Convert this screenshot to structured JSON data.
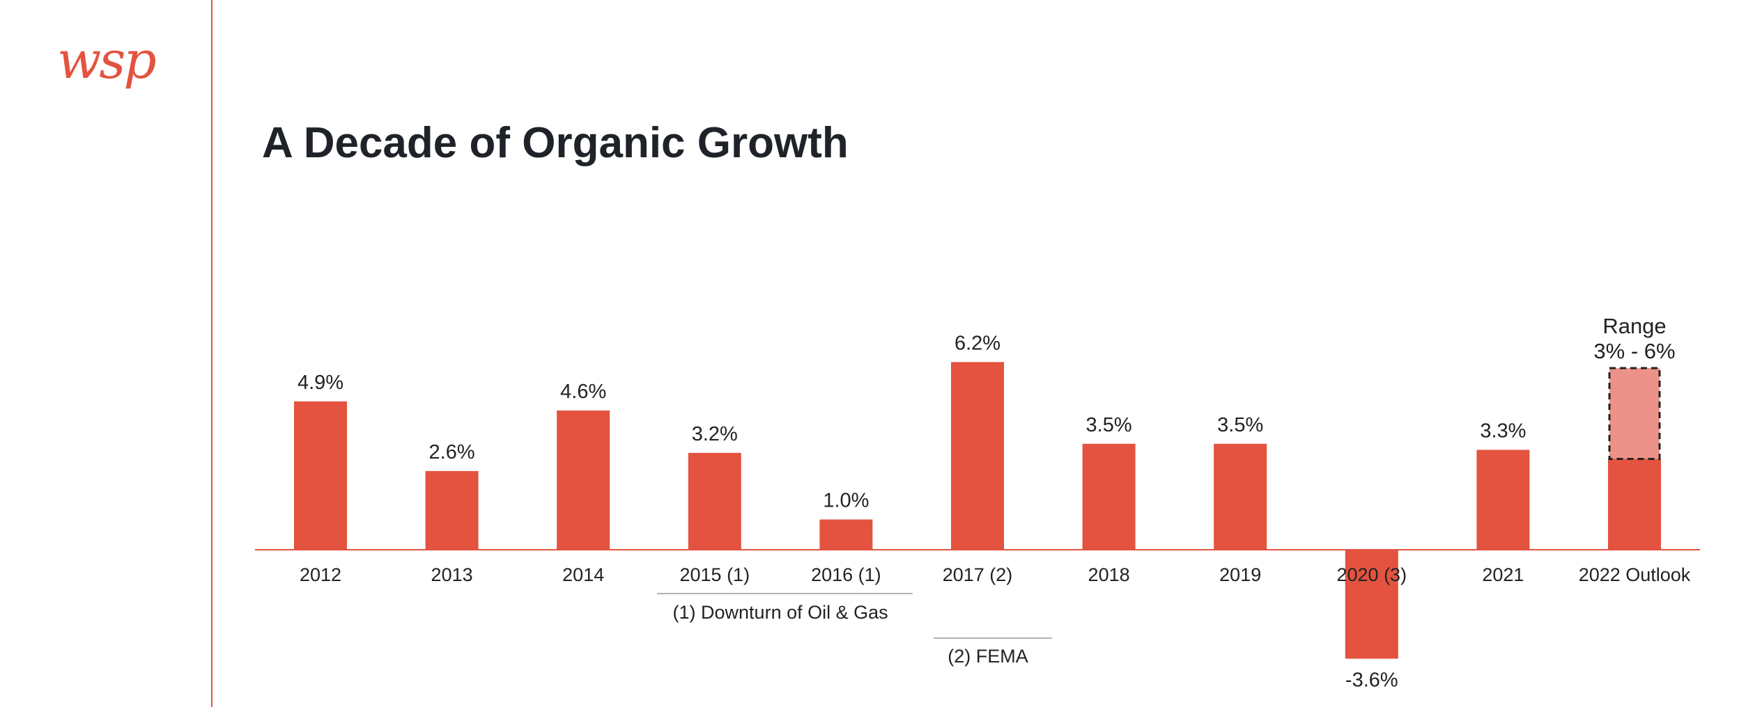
{
  "brand": {
    "logo_text": "wsp",
    "accent_color": "#e3533f"
  },
  "title": "A Decade of Organic Growth",
  "chart_data": {
    "type": "bar",
    "title": "A Decade of Organic Growth",
    "categories": [
      "2012",
      "2013",
      "2014",
      "2015 (1)",
      "2016 (1)",
      "2017 (2)",
      "2018",
      "2019",
      "2020 (3)",
      "2021",
      "2022 Outlook"
    ],
    "values": [
      4.9,
      2.6,
      4.6,
      3.2,
      1.0,
      6.2,
      3.5,
      3.5,
      -3.6,
      3.3,
      3.0
    ],
    "value_labels": [
      "4.9%",
      "2.6%",
      "4.6%",
      "3.2%",
      "1.0%",
      "6.2%",
      "3.5%",
      "3.5%",
      "-3.6%",
      "3.3%",
      ""
    ],
    "outlook_range": {
      "low": 3,
      "high": 6,
      "label_title": "Range",
      "label_value": "3% - 6%"
    },
    "footnotes": [
      "(1) Downturn of Oil & Gas",
      "(2) FEMA"
    ],
    "bar_color": "#e3533f",
    "range_color": "#ec9288",
    "xlabel": "",
    "ylabel": "",
    "grid": false
  }
}
